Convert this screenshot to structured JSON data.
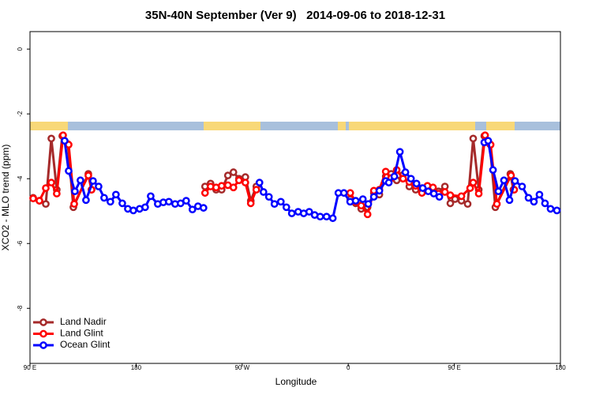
{
  "chart_data": {
    "type": "line",
    "title": "35N-40N September (Ver 9)   2014-09-06 to 2018-12-31",
    "xlabel": "Longitude",
    "ylabel": "XCO2 - MLO trend (ppm)",
    "xlim": [
      90,
      540
    ],
    "ylim": [
      -9.7,
      0.54
    ],
    "xticks": [
      {
        "value": 90,
        "label": "90 E"
      },
      {
        "value": 180,
        "label": "180"
      },
      {
        "value": 270,
        "label": "90 W"
      },
      {
        "value": 360,
        "label": "0"
      },
      {
        "value": 450,
        "label": "90 E"
      },
      {
        "value": 540,
        "label": "180"
      }
    ],
    "yticks": [
      -8,
      -6,
      -4,
      -2,
      0
    ],
    "legend": "bottom-left",
    "series": [
      {
        "name": "Land Nadir",
        "color": "#a52a2a",
        "x": [
          92.7,
          98.0,
          103.4,
          108.1,
          112.7,
          117.4,
          122.1,
          126.8,
          139.5,
          142.2,
          null,
          238.5,
          243.2,
          247.9,
          252.6,
          257.9,
          262.6,
          267.3,
          272.7,
          277.3,
          282.0,
          null,
          361.7,
          366.3,
          371.0,
          376.4,
          381.7,
          386.4,
          391.8,
          396.4,
          401.1,
          406.5,
          411.8,
          417.2,
          422.5,
          427.2,
          431.9,
          436.6,
          442.0,
          446.6,
          450.6,
          456.0,
          461.3,
          466.0,
          470.7,
          475.4,
          480.1,
          484.8,
          497.5,
          500.1
        ],
        "values": [
          -4.59,
          -4.68,
          -4.78,
          -2.76,
          -4.34,
          -2.68,
          -2.93,
          -4.88,
          -3.85,
          -4.34,
          null,
          -4.24,
          -4.15,
          -4.34,
          -4.34,
          -3.9,
          -3.8,
          -4.0,
          -3.95,
          -4.68,
          -4.24,
          null,
          -4.63,
          -4.76,
          -4.93,
          -4.88,
          -4.44,
          -4.49,
          -3.93,
          -3.85,
          -4.05,
          -3.88,
          -4.24,
          -4.34,
          -4.29,
          -4.34,
          -4.41,
          -4.39,
          -4.24,
          -4.76,
          -4.63,
          -4.68,
          -4.78,
          -2.76,
          -4.34,
          -2.68,
          -2.93,
          -4.88,
          -3.85,
          -4.34
        ]
      },
      {
        "name": "Land Glint",
        "color": "#ff0000",
        "x": [
          92.7,
          98.0,
          103.4,
          108.1,
          112.7,
          118.1,
          122.8,
          127.5,
          139.5,
          142.2,
          null,
          238.5,
          243.2,
          247.9,
          252.6,
          257.9,
          262.6,
          267.3,
          272.7,
          277.3,
          282.0,
          null,
          361.7,
          366.3,
          371.0,
          376.4,
          381.7,
          386.4,
          391.8,
          396.4,
          401.1,
          406.5,
          411.8,
          417.2,
          422.5,
          427.2,
          431.9,
          436.6,
          442.0,
          446.6,
          456.0,
          463.4,
          466.0,
          470.7,
          476.1,
          480.8,
          486.1,
          498.1,
          500.8
        ],
        "values": [
          -4.61,
          -4.68,
          -4.29,
          -4.12,
          -4.46,
          -2.66,
          -2.95,
          -4.78,
          -3.9,
          -4.34,
          null,
          -4.44,
          -4.24,
          -4.27,
          -4.22,
          -4.2,
          -4.27,
          -4.05,
          -4.12,
          -4.76,
          -4.34,
          null,
          -4.44,
          -4.71,
          -4.83,
          -5.1,
          -4.37,
          -4.34,
          -3.78,
          -3.98,
          -3.73,
          -4.0,
          -4.1,
          -4.22,
          -4.44,
          -4.22,
          -4.27,
          -4.46,
          -4.41,
          -4.51,
          -4.54,
          -4.29,
          -4.12,
          -4.46,
          -2.66,
          -2.95,
          -4.78,
          -3.9,
          -4.34
        ]
      },
      {
        "name": "Ocean Glint",
        "color": "#0000ff",
        "x": [
          119.4,
          122.8,
          128.1,
          132.8,
          137.5,
          143.5,
          148.2,
          152.9,
          158.2,
          162.9,
          168.3,
          173.0,
          177.7,
          183.0,
          187.7,
          192.4,
          198.4,
          203.1,
          207.8,
          213.1,
          217.8,
          222.5,
          227.8,
          232.5,
          237.2,
          null,
          284.7,
          288.1,
          292.7,
          297.4,
          302.8,
          307.5,
          312.1,
          317.5,
          322.2,
          326.9,
          331.5,
          336.2,
          341.6,
          346.9,
          351.6,
          356.3,
          361.6,
          366.3,
          372.4,
          377.0,
          381.7,
          386.4,
          391.8,
          394.4,
          399.1,
          403.8,
          408.5,
          413.2,
          417.9,
          423.2,
          427.9,
          432.6,
          437.3,
          null,
          475.4,
          478.7,
          482.8,
          487.4,
          492.1,
          496.8,
          501.5,
          507.5,
          512.9,
          517.5,
          522.2,
          526.9,
          531.6,
          537.0
        ],
        "values": [
          -2.83,
          -3.76,
          -4.39,
          -4.05,
          -4.66,
          -4.07,
          -4.24,
          -4.59,
          -4.71,
          -4.49,
          -4.76,
          -4.93,
          -4.98,
          -4.93,
          -4.88,
          -4.54,
          -4.78,
          -4.73,
          -4.71,
          -4.78,
          -4.76,
          -4.68,
          -4.95,
          -4.85,
          -4.9,
          null,
          -4.12,
          -4.41,
          -4.56,
          -4.78,
          -4.71,
          -4.88,
          -5.07,
          -5.02,
          -5.07,
          -5.02,
          -5.12,
          -5.17,
          -5.17,
          -5.22,
          -4.44,
          -4.44,
          -4.71,
          -4.68,
          -4.63,
          -4.78,
          -4.56,
          -4.37,
          -4.07,
          -4.12,
          -3.93,
          -3.17,
          -3.8,
          -4.0,
          -4.15,
          -4.29,
          -4.39,
          -4.46,
          -4.56,
          null,
          -2.88,
          -2.83,
          -3.73,
          -4.39,
          -4.05,
          -4.66,
          -4.07,
          -4.24,
          -4.59,
          -4.71,
          -4.49,
          -4.76,
          -4.93,
          -4.98
        ]
      }
    ]
  }
}
